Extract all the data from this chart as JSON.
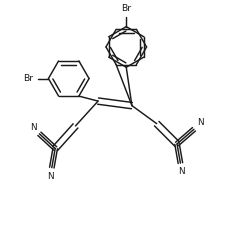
{
  "background": "#ffffff",
  "line_color": "#1a1a1a",
  "line_width": 1.05,
  "font_size": 6.2,
  "fig_width": 2.39,
  "fig_height": 2.27,
  "dpi": 100,
  "xlim": [
    0,
    10
  ],
  "ylim": [
    0,
    10
  ]
}
